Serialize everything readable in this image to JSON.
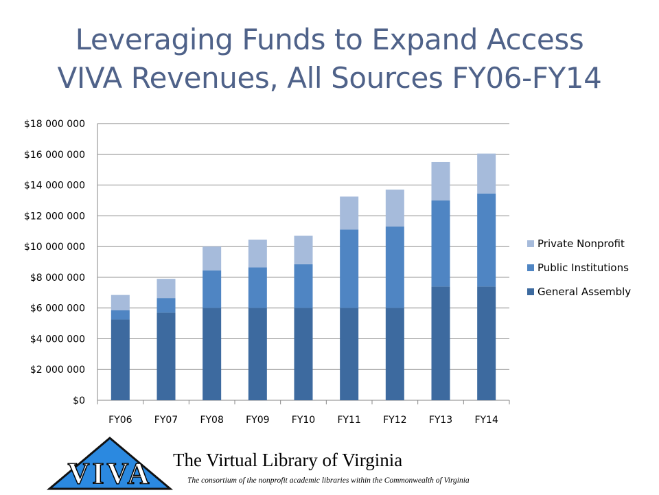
{
  "page": {
    "title_line1": "Leveraging Funds to Expand Access",
    "title_line2": "VIVA Revenues, All Sources FY06-FY14"
  },
  "footer": {
    "logo_text": "VIVA",
    "org_name": "The Virtual Library of Virginia",
    "tagline": "The consortium of the nonprofit academic libraries within the Commonwealth of Virginia"
  },
  "colors": {
    "general_assembly": "#3d6a9f",
    "public_institutions": "#4f85c3",
    "private_nonprofit": "#a6bbdb",
    "gridline": "#868686",
    "title": "#4f6289",
    "logo_fill": "#2b89e0"
  },
  "chart_data": {
    "type": "bar",
    "stacked": true,
    "categories": [
      "FY06",
      "FY07",
      "FY08",
      "FY09",
      "FY10",
      "FY11",
      "FY12",
      "FY13",
      "FY14"
    ],
    "series": [
      {
        "name": "General Assembly",
        "values": [
          5250000,
          5700000,
          6000000,
          6000000,
          6000000,
          6000000,
          6000000,
          7400000,
          7400000
        ]
      },
      {
        "name": "Public Institutions",
        "values": [
          600000,
          950000,
          2450000,
          2650000,
          2850000,
          5100000,
          5300000,
          5600000,
          6050000
        ]
      },
      {
        "name": "Private Nonprofit",
        "values": [
          1000000,
          1250000,
          1550000,
          1800000,
          1850000,
          2150000,
          2400000,
          2500000,
          2600000
        ]
      }
    ],
    "ylim": [
      0,
      18000000
    ],
    "yticks": [
      0,
      2000000,
      4000000,
      6000000,
      8000000,
      10000000,
      12000000,
      14000000,
      16000000,
      18000000
    ],
    "ytick_labels": [
      "$0",
      "$2 000 000",
      "$4 000 000",
      "$6 000 000",
      "$8 000 000",
      "$10 000 000",
      "$12 000 000",
      "$14 000 000",
      "$16 000 000",
      "$18 000 000"
    ],
    "grid": true,
    "legend_position": "right",
    "legend_order": [
      "Private Nonprofit",
      "Public Institutions",
      "General Assembly"
    ]
  }
}
